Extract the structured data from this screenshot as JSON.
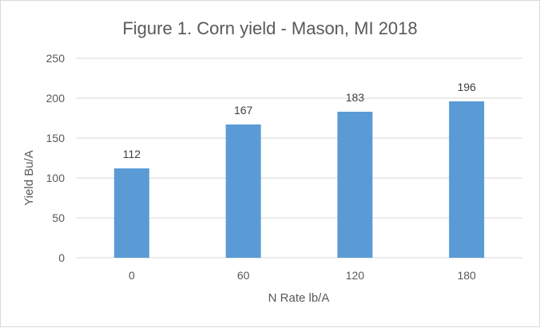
{
  "chart_data": {
    "type": "bar",
    "title": "Figure 1. Corn yield - Mason, MI 2018",
    "xlabel": "N Rate lb/A",
    "ylabel": "Yield Bu/A",
    "categories": [
      "0",
      "60",
      "120",
      "180"
    ],
    "values": [
      112,
      167,
      183,
      196
    ],
    "data_labels": [
      "112",
      "167",
      "183",
      "196"
    ],
    "y_ticks": [
      "0",
      "50",
      "100",
      "150",
      "200",
      "250"
    ],
    "ylim": [
      0,
      250
    ],
    "grid": true,
    "legend": "none",
    "bar_color": "#5b9bd5",
    "grid_color": "#d9d9d9"
  }
}
